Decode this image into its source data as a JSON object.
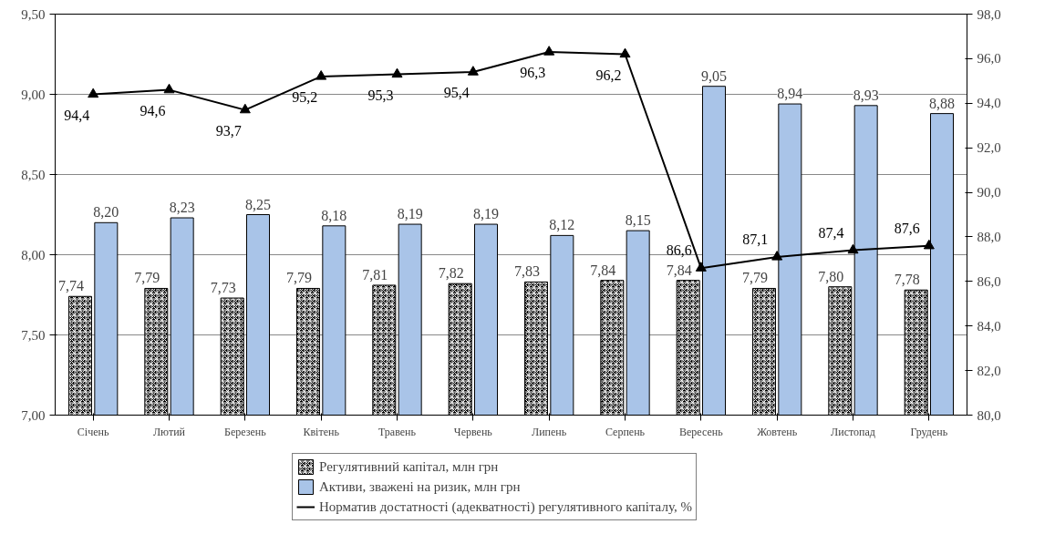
{
  "chart_data": {
    "type": "bar",
    "categories": [
      "Січень",
      "Лютий",
      "Березень",
      "Квітень",
      "Травень",
      "Червень",
      "Липень",
      "Серпень",
      "Вересень",
      "Жовтень",
      "Листопад",
      "Грудень"
    ],
    "series": [
      {
        "name": "Регулятивний капітал, млн грн",
        "color": "#000000",
        "values": [
          7.74,
          7.79,
          7.73,
          7.79,
          7.81,
          7.82,
          7.83,
          7.84,
          7.84,
          7.79,
          7.8,
          7.78
        ],
        "value_labels": [
          "7,74",
          "7,79",
          "7,73",
          "7,79",
          "7,81",
          "7,82",
          "7,83",
          "7,84",
          "7,84",
          "7,79",
          "7,80",
          "7,78"
        ]
      },
      {
        "name": "Активи, зважені на ризик, млн грн",
        "color": "#a9c4e8",
        "values": [
          8.2,
          8.23,
          8.25,
          8.18,
          8.19,
          8.19,
          8.12,
          8.15,
          9.05,
          8.94,
          8.93,
          8.88
        ],
        "value_labels": [
          "8,20",
          "8,23",
          "8,25",
          "8,18",
          "8,19",
          "8,19",
          "8,12",
          "8,15",
          "9,05",
          "8,94",
          "8,93",
          "8,88"
        ]
      },
      {
        "name": "Норматив достатності (адекватності) регулятивного капіталу, %",
        "type": "line",
        "axis": "y2",
        "color": "#000000",
        "marker": "triangle",
        "values": [
          94.4,
          94.6,
          93.7,
          95.2,
          95.3,
          95.4,
          96.3,
          96.2,
          86.6,
          87.1,
          87.4,
          87.6
        ],
        "value_labels": [
          "94,4",
          "94,6",
          "93,7",
          "95,2",
          "95,3",
          "95,4",
          "96,3",
          "96,2",
          "86,6",
          "87,1",
          "87,4",
          "87,6"
        ]
      }
    ],
    "ylim": [
      7.0,
      9.5
    ],
    "yticks": [
      {
        "value": 7.0,
        "label": "7,00"
      },
      {
        "value": 7.5,
        "label": "7,50"
      },
      {
        "value": 8.0,
        "label": "8,00"
      },
      {
        "value": 8.5,
        "label": "8,50"
      },
      {
        "value": 9.0,
        "label": "9,00"
      },
      {
        "value": 9.5,
        "label": "9,50"
      }
    ],
    "y2lim": [
      80,
      98
    ],
    "y2ticks": [
      {
        "value": 80,
        "label": "80,0"
      },
      {
        "value": 82,
        "label": "82,0"
      },
      {
        "value": 84,
        "label": "84,0"
      },
      {
        "value": 86,
        "label": "86,0"
      },
      {
        "value": 88,
        "label": "88,0"
      },
      {
        "value": 90,
        "label": "90,0"
      },
      {
        "value": 92,
        "label": "92,0"
      },
      {
        "value": 94,
        "label": "94,0"
      },
      {
        "value": 96,
        "label": "96,0"
      },
      {
        "value": 98,
        "label": "98,0"
      }
    ],
    "grid": "y",
    "legend": "bottom"
  }
}
